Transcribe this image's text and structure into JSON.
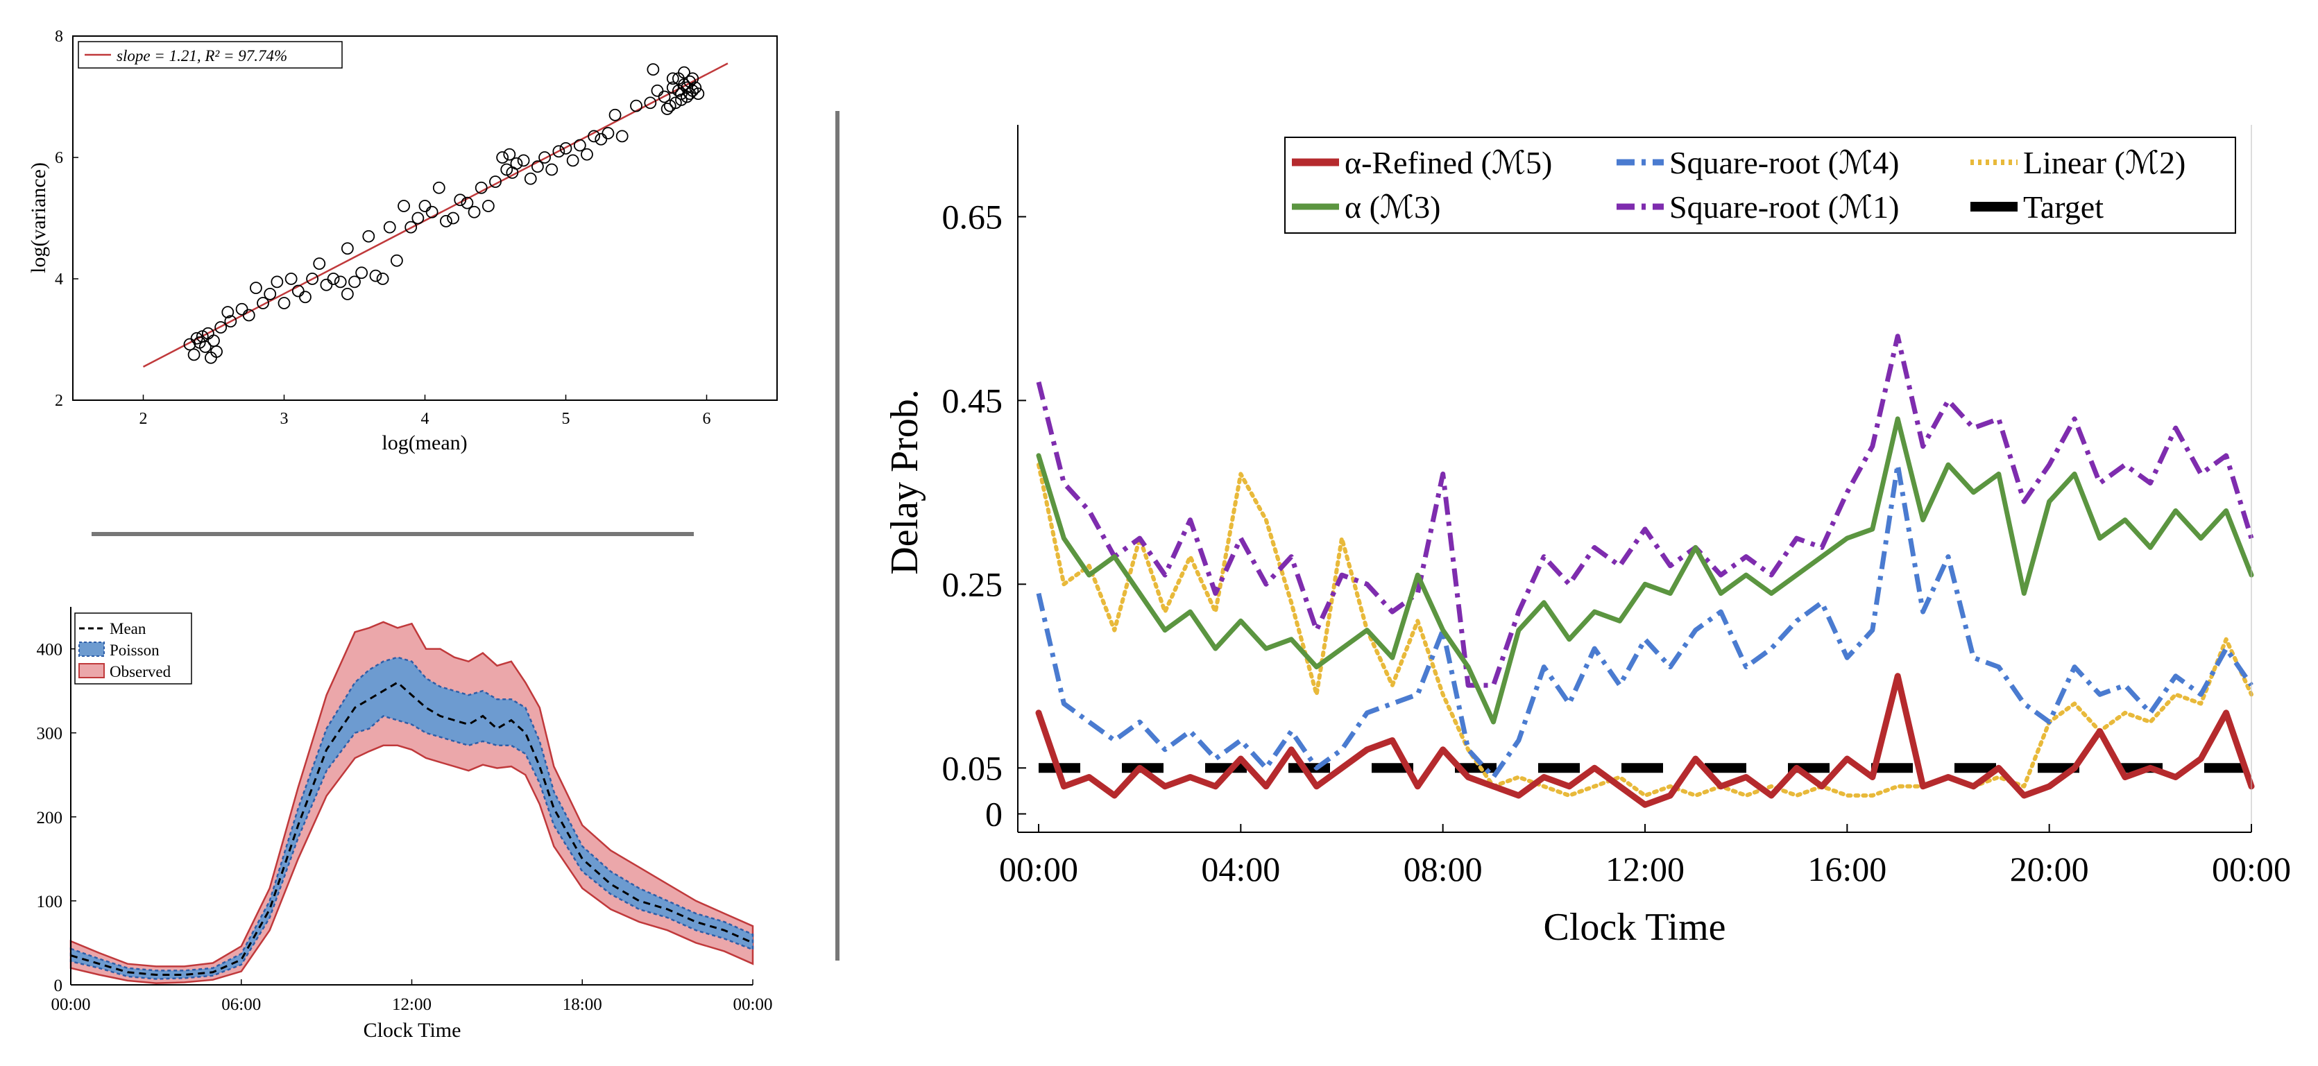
{
  "chart_data": [
    {
      "type": "scatter",
      "xlabel": "log(mean)",
      "ylabel": "log(variance)",
      "xlim": [
        1.5,
        6.5
      ],
      "ylim": [
        2,
        8
      ],
      "x_ticks": [
        "2",
        "3",
        "4",
        "5",
        "6"
      ],
      "y_ticks": [
        "2",
        "4",
        "6",
        "8"
      ],
      "legend": {
        "placement": "top-left",
        "entry": "slope = 1.21, R² = 97.74%"
      },
      "fit_line": {
        "x": [
          2.0,
          6.15
        ],
        "y": [
          2.55,
          7.55
        ],
        "color": "#c0393b"
      },
      "points": [
        [
          2.33,
          2.92
        ],
        [
          2.36,
          2.75
        ],
        [
          2.38,
          3.02
        ],
        [
          2.4,
          2.95
        ],
        [
          2.42,
          3.05
        ],
        [
          2.44,
          2.88
        ],
        [
          2.46,
          3.1
        ],
        [
          2.48,
          2.7
        ],
        [
          2.5,
          2.98
        ],
        [
          2.52,
          2.8
        ],
        [
          2.55,
          3.2
        ],
        [
          2.6,
          3.45
        ],
        [
          2.62,
          3.3
        ],
        [
          2.7,
          3.5
        ],
        [
          2.75,
          3.4
        ],
        [
          2.8,
          3.85
        ],
        [
          2.85,
          3.6
        ],
        [
          2.9,
          3.75
        ],
        [
          2.95,
          3.95
        ],
        [
          3.0,
          3.6
        ],
        [
          3.05,
          4.0
        ],
        [
          3.1,
          3.8
        ],
        [
          3.15,
          3.7
        ],
        [
          3.2,
          4.0
        ],
        [
          3.25,
          4.25
        ],
        [
          3.3,
          3.9
        ],
        [
          3.35,
          4.0
        ],
        [
          3.4,
          3.95
        ],
        [
          3.45,
          3.75
        ],
        [
          3.45,
          4.5
        ],
        [
          3.5,
          3.95
        ],
        [
          3.55,
          4.1
        ],
        [
          3.6,
          4.7
        ],
        [
          3.65,
          4.05
        ],
        [
          3.7,
          4.0
        ],
        [
          3.75,
          4.85
        ],
        [
          3.8,
          4.3
        ],
        [
          3.85,
          5.2
        ],
        [
          3.9,
          4.85
        ],
        [
          3.95,
          5.0
        ],
        [
          4.0,
          5.2
        ],
        [
          4.05,
          5.1
        ],
        [
          4.1,
          5.5
        ],
        [
          4.15,
          4.95
        ],
        [
          4.2,
          5.0
        ],
        [
          4.25,
          5.3
        ],
        [
          4.3,
          5.25
        ],
        [
          4.35,
          5.1
        ],
        [
          4.4,
          5.5
        ],
        [
          4.45,
          5.2
        ],
        [
          4.5,
          5.6
        ],
        [
          4.55,
          6.0
        ],
        [
          4.58,
          5.8
        ],
        [
          4.6,
          6.05
        ],
        [
          4.62,
          5.75
        ],
        [
          4.65,
          5.9
        ],
        [
          4.7,
          5.95
        ],
        [
          4.75,
          5.65
        ],
        [
          4.8,
          5.85
        ],
        [
          4.85,
          6.0
        ],
        [
          4.9,
          5.8
        ],
        [
          4.95,
          6.1
        ],
        [
          5.0,
          6.15
        ],
        [
          5.05,
          5.95
        ],
        [
          5.1,
          6.2
        ],
        [
          5.15,
          6.05
        ],
        [
          5.2,
          6.35
        ],
        [
          5.25,
          6.3
        ],
        [
          5.3,
          6.4
        ],
        [
          5.35,
          6.7
        ],
        [
          5.4,
          6.35
        ],
        [
          5.5,
          6.85
        ],
        [
          5.6,
          6.9
        ],
        [
          5.62,
          7.45
        ],
        [
          5.65,
          7.1
        ],
        [
          5.7,
          7.0
        ],
        [
          5.72,
          6.8
        ],
        [
          5.74,
          6.85
        ],
        [
          5.76,
          7.3
        ],
        [
          5.78,
          6.9
        ],
        [
          5.8,
          7.1
        ],
        [
          5.8,
          7.3
        ],
        [
          5.82,
          7.05
        ],
        [
          5.82,
          6.95
        ],
        [
          5.84,
          7.2
        ],
        [
          5.84,
          7.4
        ],
        [
          5.86,
          7.0
        ],
        [
          5.86,
          7.15
        ],
        [
          5.88,
          7.25
        ],
        [
          5.88,
          7.05
        ],
        [
          5.9,
          7.1
        ],
        [
          5.9,
          7.3
        ],
        [
          5.92,
          7.15
        ],
        [
          5.94,
          7.05
        ],
        [
          5.76,
          7.15
        ]
      ]
    },
    {
      "type": "area",
      "xlabel": "Clock Time",
      "ylabel": "",
      "x_range_hours": [
        0,
        24
      ],
      "ylim": [
        0,
        450
      ],
      "x_ticks": [
        "00:00",
        "06:00",
        "12:00",
        "18:00",
        "00:00"
      ],
      "y_ticks": [
        "0",
        "100",
        "200",
        "300",
        "400"
      ],
      "legend": {
        "placement": "top-left",
        "entries": [
          "Mean",
          "Poisson",
          "Observed"
        ]
      },
      "hours": [
        0,
        1,
        2,
        3,
        4,
        5,
        6,
        7,
        8,
        9,
        10,
        10.5,
        11,
        11.5,
        12,
        12.5,
        13,
        13.5,
        14,
        14.5,
        15,
        15.5,
        16,
        16.5,
        17,
        18,
        19,
        20,
        21,
        22,
        23,
        24
      ],
      "series": [
        {
          "name": "Mean",
          "values": [
            35,
            25,
            15,
            12,
            12,
            15,
            30,
            90,
            190,
            280,
            330,
            340,
            350,
            360,
            345,
            330,
            320,
            315,
            310,
            320,
            305,
            315,
            300,
            260,
            210,
            150,
            120,
            100,
            90,
            75,
            65,
            50
          ]
        },
        {
          "name": "Poisson",
          "lower": [
            28,
            20,
            10,
            7,
            8,
            11,
            24,
            80,
            175,
            255,
            300,
            305,
            320,
            315,
            310,
            300,
            295,
            290,
            285,
            290,
            285,
            285,
            275,
            240,
            190,
            135,
            108,
            90,
            80,
            65,
            55,
            42
          ],
          "upper": [
            43,
            31,
            20,
            17,
            17,
            20,
            37,
            100,
            210,
            305,
            360,
            375,
            385,
            390,
            385,
            365,
            355,
            350,
            345,
            350,
            340,
            340,
            330,
            290,
            230,
            165,
            135,
            115,
            100,
            85,
            75,
            60
          ]
        },
        {
          "name": "Observed",
          "lower": [
            20,
            12,
            5,
            2,
            3,
            6,
            16,
            65,
            150,
            225,
            270,
            278,
            285,
            285,
            280,
            270,
            265,
            260,
            255,
            262,
            258,
            260,
            250,
            215,
            165,
            115,
            90,
            75,
            65,
            50,
            40,
            25
          ],
          "upper": [
            52,
            38,
            25,
            22,
            22,
            26,
            46,
            115,
            235,
            345,
            420,
            425,
            432,
            425,
            430,
            400,
            400,
            390,
            385,
            395,
            380,
            385,
            360,
            330,
            260,
            190,
            160,
            140,
            120,
            100,
            85,
            70
          ]
        }
      ]
    },
    {
      "type": "line",
      "xlabel": "Clock Time",
      "ylabel": "Delay Prob.",
      "x_range_hours": [
        0,
        24
      ],
      "ylim": [
        -0.02,
        0.75
      ],
      "x_ticks": [
        "00:00",
        "04:00",
        "08:00",
        "12:00",
        "16:00",
        "20:00",
        "00:00"
      ],
      "y_ticks": [
        "0",
        "0.05",
        "0.25",
        "0.45",
        "0.65"
      ],
      "legend": {
        "placement": "top",
        "entries": [
          "α-Refined (ℳ5)",
          "Square-root (ℳ4)",
          "Linear (ℳ2)",
          "α (ℳ3)",
          "Square-root (ℳ1)",
          "Target"
        ]
      },
      "hours": [
        0,
        0.5,
        1,
        1.5,
        2,
        2.5,
        3,
        3.5,
        4,
        4.5,
        5,
        5.5,
        6,
        6.5,
        7,
        7.5,
        8,
        8.5,
        9,
        9.5,
        10,
        10.5,
        11,
        11.5,
        12,
        12.5,
        13,
        13.5,
        14,
        14.5,
        15,
        15.5,
        16,
        16.5,
        17,
        17.5,
        18,
        18.5,
        19,
        19.5,
        20,
        20.5,
        21,
        21.5,
        22,
        22.5,
        23,
        23.5,
        24
      ],
      "series": [
        {
          "name": "α-Refined (ℳ5)",
          "color": "#b52a2d",
          "values": [
            0.11,
            0.03,
            0.04,
            0.02,
            0.05,
            0.03,
            0.04,
            0.03,
            0.06,
            0.03,
            0.07,
            0.03,
            0.05,
            0.07,
            0.08,
            0.03,
            0.07,
            0.04,
            0.03,
            0.02,
            0.04,
            0.03,
            0.05,
            0.03,
            0.01,
            0.02,
            0.06,
            0.03,
            0.04,
            0.02,
            0.05,
            0.03,
            0.06,
            0.04,
            0.15,
            0.03,
            0.04,
            0.03,
            0.05,
            0.02,
            0.03,
            0.05,
            0.09,
            0.04,
            0.05,
            0.04,
            0.06,
            0.11,
            0.03
          ]
        },
        {
          "name": "Square-root (ℳ4)",
          "color": "#4a7bd0",
          "values": [
            0.24,
            0.12,
            0.1,
            0.08,
            0.1,
            0.07,
            0.09,
            0.06,
            0.08,
            0.05,
            0.09,
            0.05,
            0.07,
            0.11,
            0.12,
            0.13,
            0.2,
            0.07,
            0.04,
            0.08,
            0.16,
            0.12,
            0.18,
            0.14,
            0.19,
            0.16,
            0.2,
            0.22,
            0.16,
            0.18,
            0.21,
            0.23,
            0.17,
            0.2,
            0.38,
            0.22,
            0.28,
            0.17,
            0.16,
            0.12,
            0.1,
            0.16,
            0.13,
            0.14,
            0.11,
            0.15,
            0.13,
            0.18,
            0.14
          ]
        },
        {
          "name": "Linear (ℳ2)",
          "color": "#e8b93a",
          "values": [
            0.38,
            0.25,
            0.27,
            0.2,
            0.3,
            0.22,
            0.28,
            0.22,
            0.37,
            0.32,
            0.23,
            0.13,
            0.3,
            0.2,
            0.14,
            0.21,
            0.13,
            0.07,
            0.03,
            0.04,
            0.03,
            0.02,
            0.03,
            0.04,
            0.02,
            0.03,
            0.02,
            0.03,
            0.02,
            0.03,
            0.02,
            0.03,
            0.02,
            0.02,
            0.03,
            0.03,
            0.04,
            0.03,
            0.04,
            0.03,
            0.1,
            0.12,
            0.09,
            0.11,
            0.1,
            0.13,
            0.12,
            0.19,
            0.13
          ]
        },
        {
          "name": "α (ℳ3)",
          "color": "#5b9540",
          "values": [
            0.39,
            0.3,
            0.26,
            0.28,
            0.24,
            0.2,
            0.22,
            0.18,
            0.21,
            0.18,
            0.19,
            0.16,
            0.18,
            0.2,
            0.17,
            0.26,
            0.2,
            0.16,
            0.1,
            0.2,
            0.23,
            0.19,
            0.22,
            0.21,
            0.25,
            0.24,
            0.29,
            0.24,
            0.26,
            0.24,
            0.26,
            0.28,
            0.3,
            0.31,
            0.43,
            0.32,
            0.38,
            0.35,
            0.37,
            0.24,
            0.34,
            0.37,
            0.3,
            0.32,
            0.29,
            0.33,
            0.3,
            0.33,
            0.26
          ]
        },
        {
          "name": "Square-root (ℳ1)",
          "color": "#7e2cae",
          "values": [
            0.47,
            0.36,
            0.33,
            0.28,
            0.3,
            0.26,
            0.32,
            0.24,
            0.3,
            0.25,
            0.28,
            0.2,
            0.26,
            0.25,
            0.22,
            0.24,
            0.37,
            0.14,
            0.14,
            0.22,
            0.28,
            0.25,
            0.29,
            0.27,
            0.31,
            0.27,
            0.29,
            0.26,
            0.28,
            0.26,
            0.3,
            0.29,
            0.35,
            0.4,
            0.52,
            0.4,
            0.45,
            0.42,
            0.43,
            0.34,
            0.38,
            0.43,
            0.36,
            0.38,
            0.36,
            0.42,
            0.37,
            0.39,
            0.3
          ]
        },
        {
          "name": "Target",
          "color": "#000000",
          "values": [
            0.05,
            0.05,
            0.05,
            0.05,
            0.05,
            0.05,
            0.05,
            0.05,
            0.05,
            0.05,
            0.05,
            0.05,
            0.05,
            0.05,
            0.05,
            0.05,
            0.05,
            0.05,
            0.05,
            0.05,
            0.05,
            0.05,
            0.05,
            0.05,
            0.05,
            0.05,
            0.05,
            0.05,
            0.05,
            0.05,
            0.05,
            0.05,
            0.05,
            0.05,
            0.05,
            0.05,
            0.05,
            0.05,
            0.05,
            0.05,
            0.05,
            0.05,
            0.05,
            0.05,
            0.05,
            0.05,
            0.05,
            0.05,
            0.05
          ]
        }
      ]
    }
  ]
}
